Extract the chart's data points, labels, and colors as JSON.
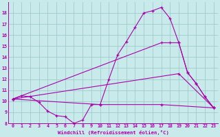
{
  "background_color": "#c8eaea",
  "grid_color": "#a0cccc",
  "line_color": "#aa00aa",
  "xlabel": "Windchill (Refroidissement éolien,°C)",
  "xlim": [
    -0.5,
    23.5
  ],
  "ylim": [
    8,
    19
  ],
  "yticks": [
    8,
    9,
    10,
    11,
    12,
    13,
    14,
    15,
    16,
    17,
    18
  ],
  "xticks": [
    0,
    1,
    2,
    3,
    4,
    5,
    6,
    7,
    8,
    9,
    10,
    11,
    12,
    13,
    14,
    15,
    16,
    17,
    18,
    19,
    20,
    21,
    22,
    23
  ],
  "line1_x": [
    0,
    1,
    2,
    3,
    4,
    5,
    6,
    7,
    8,
    9,
    10,
    11,
    12,
    13,
    14,
    15,
    16,
    17,
    18,
    19,
    20,
    21,
    22,
    23
  ],
  "line1_y": [
    10.2,
    10.5,
    10.4,
    9.9,
    9.1,
    8.7,
    8.6,
    8.0,
    8.3,
    9.7,
    9.7,
    12.0,
    14.2,
    15.4,
    16.7,
    18.0,
    18.2,
    18.5,
    17.5,
    15.3,
    12.6,
    11.6,
    10.4,
    9.4
  ],
  "line2_x": [
    0,
    17,
    18,
    19,
    20,
    21,
    22,
    23
  ],
  "line2_y": [
    10.2,
    15.3,
    15.3,
    15.3,
    12.6,
    11.6,
    10.4,
    9.4
  ],
  "line3_x": [
    0,
    10,
    17,
    23
  ],
  "line3_y": [
    10.2,
    9.7,
    9.7,
    9.4
  ],
  "line4_x": [
    0,
    19,
    23
  ],
  "line4_y": [
    10.2,
    12.5,
    9.4
  ]
}
